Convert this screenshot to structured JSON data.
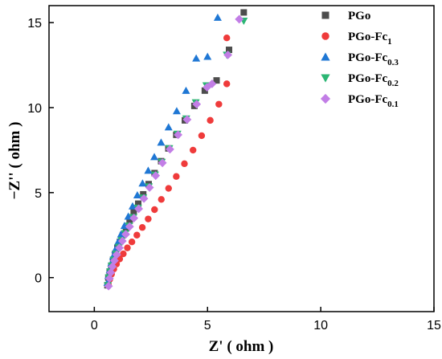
{
  "chart_data": {
    "type": "scatter",
    "xlabel": "Z' ( ohm )",
    "ylabel": "−Z'' ( ohm )",
    "xlim": [
      -2,
      15
    ],
    "ylim": [
      -2,
      16
    ],
    "xticks": [
      0,
      5,
      10,
      15
    ],
    "yticks": [
      0,
      5,
      10,
      15
    ],
    "grid": false,
    "legend_position": "top-right",
    "series": [
      {
        "name": "PGo",
        "name_base": "PGo",
        "name_sub": "",
        "marker": "square",
        "color": "#4d4d4d",
        "x": [
          0.58,
          0.62,
          0.68,
          0.75,
          0.83,
          0.92,
          1.02,
          1.13,
          1.26,
          1.4,
          1.56,
          1.74,
          1.94,
          2.16,
          2.4,
          2.66,
          2.95,
          3.27,
          3.62,
          4.0,
          4.42,
          4.88,
          5.4,
          5.95,
          6.6
        ],
        "y": [
          -0.45,
          0.0,
          0.35,
          0.7,
          1.05,
          1.4,
          1.75,
          2.1,
          2.5,
          2.9,
          3.35,
          3.85,
          4.35,
          4.9,
          5.5,
          6.15,
          6.85,
          7.6,
          8.4,
          9.25,
          10.1,
          11.0,
          11.6,
          13.4,
          15.6
        ]
      },
      {
        "name": "PGo-Fc1",
        "name_base": "PGo-Fc",
        "name_sub": "1",
        "marker": "circle",
        "color": "#ef3b3b",
        "x": [
          0.62,
          0.68,
          0.76,
          0.86,
          0.98,
          1.12,
          1.28,
          1.46,
          1.66,
          1.88,
          2.12,
          2.38,
          2.66,
          2.96,
          3.28,
          3.62,
          3.98,
          4.36,
          4.74,
          5.12,
          5.5,
          5.85,
          5.85
        ],
        "y": [
          -0.4,
          -0.1,
          0.2,
          0.5,
          0.8,
          1.1,
          1.4,
          1.75,
          2.1,
          2.5,
          2.95,
          3.45,
          4.0,
          4.6,
          5.25,
          5.95,
          6.7,
          7.5,
          8.35,
          9.25,
          10.2,
          11.4,
          14.1
        ]
      },
      {
        "name": "PGo-Fc0.3",
        "name_base": "PGo-Fc",
        "name_sub": "0.3",
        "marker": "triangle-up",
        "color": "#1f77d4",
        "x": [
          0.58,
          0.62,
          0.68,
          0.75,
          0.83,
          0.93,
          1.05,
          1.18,
          1.33,
          1.5,
          1.69,
          1.9,
          2.13,
          2.38,
          2.65,
          2.95,
          3.28,
          3.64,
          4.05,
          4.5,
          5.0,
          5.45
        ],
        "y": [
          -0.3,
          0.1,
          0.45,
          0.85,
          1.25,
          1.65,
          2.1,
          2.55,
          3.05,
          3.6,
          4.2,
          4.85,
          5.55,
          6.3,
          7.1,
          7.95,
          8.85,
          9.8,
          11.0,
          12.9,
          13.0,
          15.3
        ]
      },
      {
        "name": "PGo-Fc0.2",
        "name_base": "PGo-Fc",
        "name_sub": "0.2",
        "marker": "triangle-down",
        "color": "#2bb673",
        "x": [
          0.6,
          0.64,
          0.7,
          0.77,
          0.86,
          0.96,
          1.08,
          1.21,
          1.36,
          1.53,
          1.72,
          1.93,
          2.16,
          2.41,
          2.68,
          2.98,
          3.31,
          3.67,
          4.06,
          4.48,
          4.95,
          5.85,
          6.6
        ],
        "y": [
          -0.45,
          0.0,
          0.35,
          0.7,
          1.05,
          1.4,
          1.8,
          2.2,
          2.6,
          3.05,
          3.55,
          4.1,
          4.7,
          5.35,
          6.05,
          6.8,
          7.6,
          8.45,
          9.35,
          10.3,
          11.3,
          13.1,
          15.1
        ]
      },
      {
        "name": "PGo-Fc0.1",
        "name_base": "PGo-Fc",
        "name_sub": "0.1",
        "marker": "diamond",
        "color": "#c27ee6",
        "x": [
          0.63,
          0.67,
          0.73,
          0.8,
          0.89,
          0.99,
          1.11,
          1.24,
          1.39,
          1.56,
          1.75,
          1.96,
          2.19,
          2.44,
          2.71,
          3.01,
          3.34,
          3.7,
          4.1,
          4.52,
          4.98,
          5.2,
          5.9,
          6.4
        ],
        "y": [
          -0.5,
          -0.05,
          0.3,
          0.65,
          1.0,
          1.35,
          1.75,
          2.15,
          2.55,
          3.0,
          3.5,
          4.05,
          4.65,
          5.3,
          6.0,
          6.75,
          7.55,
          8.4,
          9.3,
          10.2,
          11.2,
          11.4,
          13.1,
          15.2
        ]
      }
    ]
  }
}
